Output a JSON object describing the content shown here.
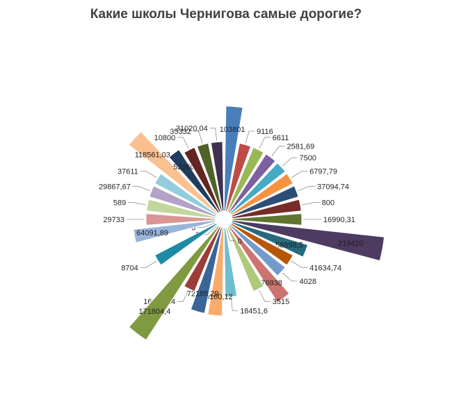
{
  "chart_data": {
    "type": "pie",
    "title": "Какие школы Чернигова самые дорогие?",
    "legend": "none",
    "slices": [
      {
        "label": "103801",
        "value": 103801,
        "color": "#4a7ebb"
      },
      {
        "label": "9116",
        "value": 9116,
        "color": "#be4b48"
      },
      {
        "label": "6611",
        "value": 6611,
        "color": "#98b954"
      },
      {
        "label": "2581,69",
        "value": 2581.69,
        "color": "#7d60a0"
      },
      {
        "label": "7500",
        "value": 7500,
        "color": "#46aac5"
      },
      {
        "label": "6797,79",
        "value": 6797.79,
        "color": "#f69240"
      },
      {
        "label": "37094,74",
        "value": 37094.74,
        "color": "#2c4d75"
      },
      {
        "label": "800",
        "value": 800,
        "color": "#772c2a"
      },
      {
        "label": "16990,31",
        "value": 16990.31,
        "color": "#5f7530"
      },
      {
        "label": "219420",
        "value": 219420,
        "color": "#4d3b62"
      },
      {
        "label": "58898,5",
        "value": 58898.5,
        "color": "#276a7c"
      },
      {
        "label": "41634,74",
        "value": 41634.74,
        "color": "#b65708"
      },
      {
        "label": "4028",
        "value": 4028,
        "color": "#729aca"
      },
      {
        "label": "76938",
        "value": 76938,
        "color": "#cd7371"
      },
      {
        "label": "3515",
        "value": 3515,
        "color": "#afc97a"
      },
      {
        "label": "0",
        "value": 0,
        "color": "#9983b5"
      },
      {
        "label": "18451,6",
        "value": 18451.6,
        "color": "#6fbdd1"
      },
      {
        "label": "73160,12",
        "value": 73160.12,
        "color": "#f9ab6b"
      },
      {
        "label": "72185,29",
        "value": 72185.29,
        "color": "#3a6599"
      },
      {
        "label": "16804,24",
        "value": 16804.24,
        "color": "#9d3d3a"
      },
      {
        "label": "171804,4",
        "value": 171804.4,
        "color": "#7f9a41"
      },
      {
        "label": "0",
        "value": 0,
        "color": "#664f83"
      },
      {
        "label": "8704",
        "value": 8704,
        "color": "#1e8ba4"
      },
      {
        "label": "0",
        "value": 0,
        "color": "#d47a2a"
      },
      {
        "label": "64091,89",
        "value": 64091.89,
        "color": "#98b4d9"
      },
      {
        "label": "29733",
        "value": 29733,
        "color": "#d99694"
      },
      {
        "label": "589",
        "value": 589,
        "color": "#c3d69b"
      },
      {
        "label": "29867,67",
        "value": 29867.67,
        "color": "#b3a2c7"
      },
      {
        "label": "37611",
        "value": 37611,
        "color": "#93cddd"
      },
      {
        "label": "118561,03",
        "value": 118561.03,
        "color": "#fac090"
      },
      {
        "label": "52260",
        "value": 52260,
        "color": "#1f3d5f"
      },
      {
        "label": "10800",
        "value": 10800,
        "color": "#632523"
      },
      {
        "label": "35332",
        "value": 35332,
        "color": "#4f6228"
      },
      {
        "label": "31020,04",
        "value": 31020.04,
        "color": "#3f3151"
      }
    ]
  }
}
